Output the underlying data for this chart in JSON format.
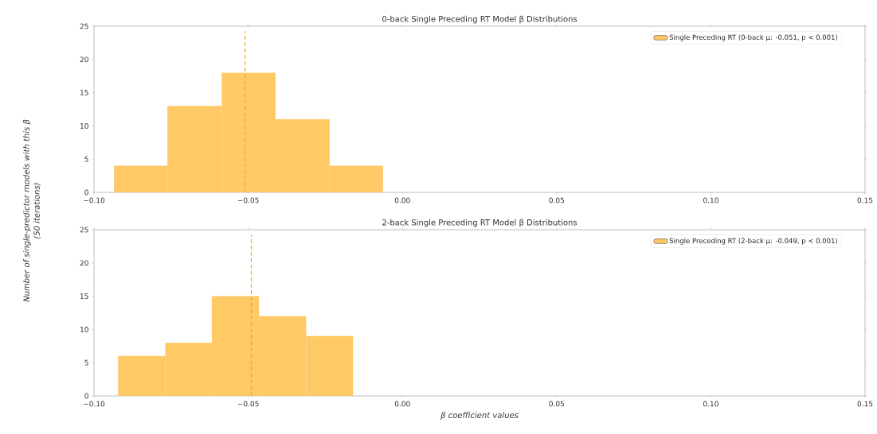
{
  "chart_data": [
    {
      "type": "histogram",
      "title": "0-back Single Preceding RT Model β Distributions",
      "ylabel": "Number of single-predictor models with this β\n(50 iterations)",
      "bins": [
        -0.0935,
        -0.0762,
        -0.0586,
        -0.0411,
        -0.0236,
        -0.0063
      ],
      "series": [
        {
          "name": "Single Preceding RT (0-back μ: -0.051, p < 0.001)",
          "color": "#ffc966",
          "values": [
            4,
            13,
            18,
            11,
            4
          ]
        }
      ],
      "ref_lines": [
        {
          "axis": "x",
          "value": -0.051,
          "color": "#ffa500",
          "line_style": "dashed"
        }
      ],
      "xlim": [
        -0.1,
        0.15
      ],
      "xticks": [
        {
          "value": -0.1,
          "label": "−0.10"
        },
        {
          "value": -0.05,
          "label": "−0.05"
        },
        {
          "value": 0,
          "label": "0.00"
        },
        {
          "value": 0.05,
          "label": "0.05"
        },
        {
          "value": 0.1,
          "label": "0.10"
        },
        {
          "value": 0.15,
          "label": "0.15"
        }
      ],
      "ylim": [
        0,
        25
      ],
      "yticks": [
        0,
        5,
        10,
        15,
        20,
        25
      ],
      "legend": "top right",
      "grid": false
    },
    {
      "type": "histogram",
      "title": "2-back Single Preceding RT Model β Distributions",
      "xlabel": "*β coefficient values*",
      "bins": [
        -0.0922,
        -0.0769,
        -0.0618,
        -0.0465,
        -0.0312,
        -0.016
      ],
      "series": [
        {
          "name": "Single Preceding RT (2-back μ: -0.049, p < 0.001)",
          "color": "#ffc966",
          "values": [
            6,
            8,
            15,
            12,
            9
          ]
        }
      ],
      "ref_lines": [
        {
          "axis": "x",
          "value": -0.049,
          "color": "#ffa500",
          "line_style": "dashed"
        }
      ],
      "xlim": [
        -0.1,
        0.15
      ],
      "xticks": [
        {
          "value": -0.1,
          "label": "−0.10"
        },
        {
          "value": -0.05,
          "label": "−0.05"
        },
        {
          "value": 0,
          "label": "0.00"
        },
        {
          "value": 0.05,
          "label": "0.05"
        },
        {
          "value": 0.1,
          "label": "0.10"
        },
        {
          "value": 0.15,
          "label": "0.15"
        }
      ],
      "ylim": [
        0,
        25
      ],
      "yticks": [
        0,
        5,
        10,
        15,
        20,
        25
      ],
      "legend": "top right",
      "grid": false
    }
  ]
}
